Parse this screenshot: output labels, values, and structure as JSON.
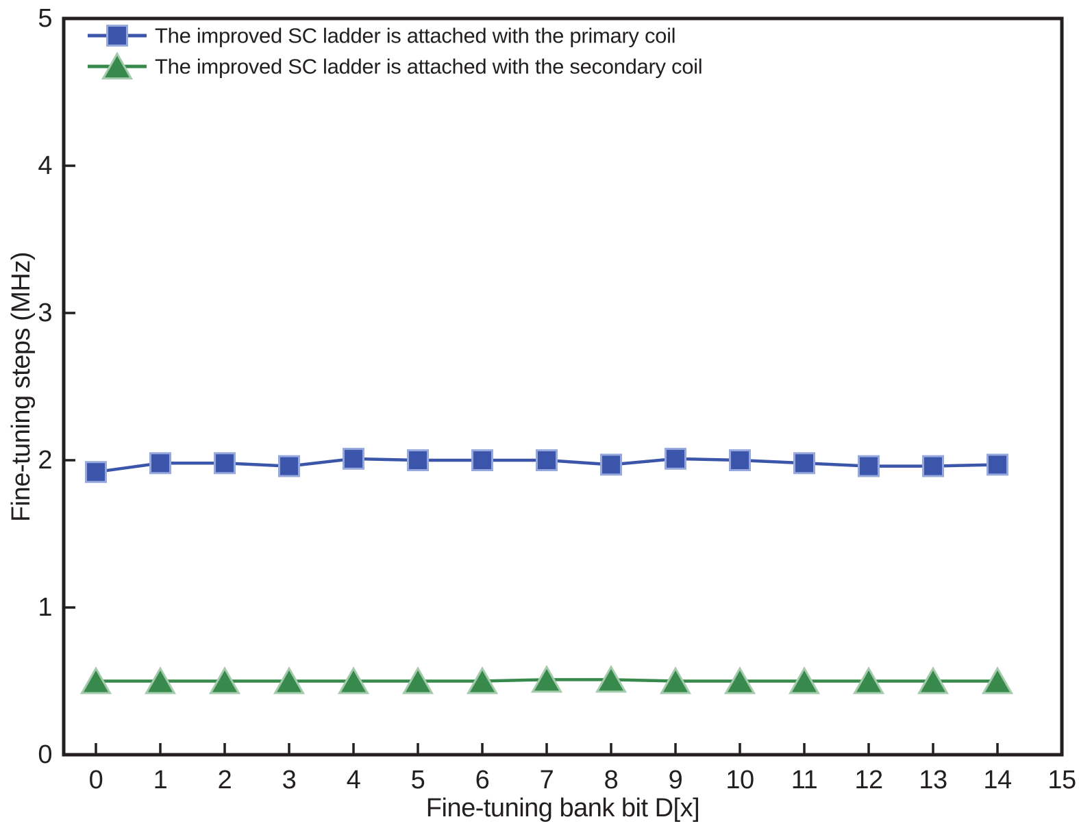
{
  "chart_data": {
    "type": "line",
    "title": "",
    "xlabel": "Fine-tuning bank bit D[x]",
    "ylabel": "Fine-tuning steps (MHz)",
    "x": [
      0,
      1,
      2,
      3,
      4,
      5,
      6,
      7,
      8,
      9,
      10,
      11,
      12,
      13,
      14
    ],
    "series": [
      {
        "name": "The improved SC ladder is attached with the primary coil",
        "marker": "square",
        "color": "#3A55A9",
        "edge_color": "#97A8DC",
        "values": [
          1.92,
          1.98,
          1.98,
          1.96,
          2.01,
          2.0,
          2.0,
          2.0,
          1.97,
          2.01,
          2.0,
          1.98,
          1.96,
          1.96,
          1.97
        ]
      },
      {
        "name": "The improved SC ladder is attached with the secondary coil",
        "marker": "triangle",
        "color": "#388A4C",
        "edge_color": "#A5CBAD",
        "values": [
          0.5,
          0.5,
          0.5,
          0.5,
          0.5,
          0.5,
          0.5,
          0.51,
          0.51,
          0.5,
          0.5,
          0.5,
          0.5,
          0.5,
          0.5
        ]
      }
    ],
    "xticks": [
      0,
      1,
      2,
      3,
      4,
      5,
      6,
      7,
      8,
      9,
      10,
      11,
      12,
      13,
      14,
      15
    ],
    "yticks": [
      0,
      1,
      2,
      3,
      4,
      5
    ],
    "xlim": [
      -0.5,
      15
    ],
    "ylim": [
      0,
      5
    ],
    "grid": false,
    "legend_position": "top-left-inside",
    "axis_color": "#231F20",
    "text_color": "#231F20",
    "background_color": "#FFFFFF"
  }
}
